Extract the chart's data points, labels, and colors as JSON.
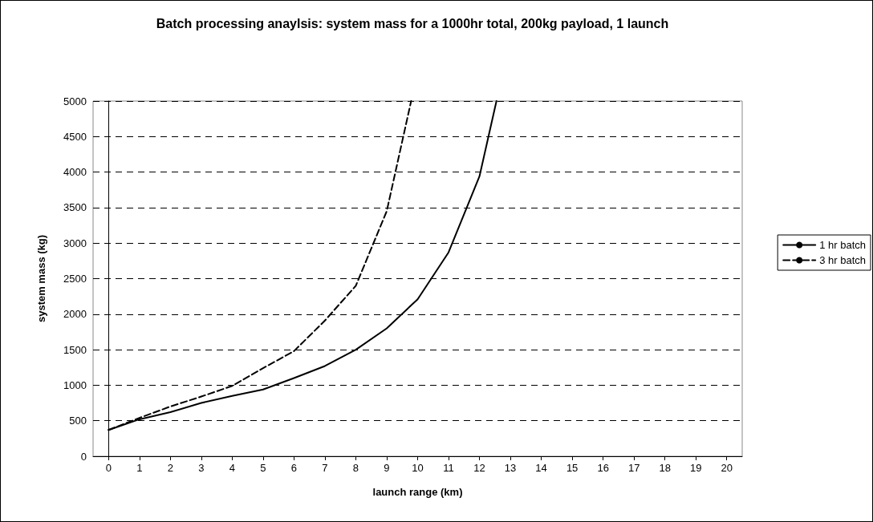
{
  "chart_data": {
    "type": "line",
    "title": "Batch processing anaylsis: system mass for a 1000hr total, 200kg payload, 1 launch",
    "xlabel": "launch range (km)",
    "ylabel": "system mass (kg)",
    "xlim": [
      -0.5,
      20.5
    ],
    "xticks": [
      0,
      1,
      2,
      3,
      4,
      5,
      6,
      7,
      8,
      9,
      10,
      11,
      12,
      13,
      14,
      15,
      16,
      17,
      18,
      19,
      20
    ],
    "ylim": [
      0,
      5000
    ],
    "yticks": [
      0,
      500,
      1000,
      1500,
      2000,
      2500,
      3000,
      3500,
      4000,
      4500,
      5000
    ],
    "grid": "y",
    "legend": "right",
    "marker": "none",
    "series": [
      {
        "name": "1 hr batch",
        "color": "#000000",
        "line_style": "solid",
        "x": [
          0,
          1,
          2,
          3,
          4,
          5,
          6,
          7,
          8,
          9,
          10,
          11,
          12,
          12.55
        ],
        "values": [
          370,
          520,
          620,
          750,
          850,
          940,
          1100,
          1270,
          1500,
          1800,
          2210,
          2870,
          3940,
          5000
        ]
      },
      {
        "name": "3 hr batch",
        "color": "#000000",
        "line_style": "dashed",
        "x": [
          0,
          1,
          2,
          3,
          4,
          5,
          6,
          7,
          8,
          9,
          9.79
        ],
        "values": [
          370,
          540,
          700,
          840,
          990,
          1240,
          1480,
          1910,
          2400,
          3450,
          5000
        ]
      }
    ]
  }
}
